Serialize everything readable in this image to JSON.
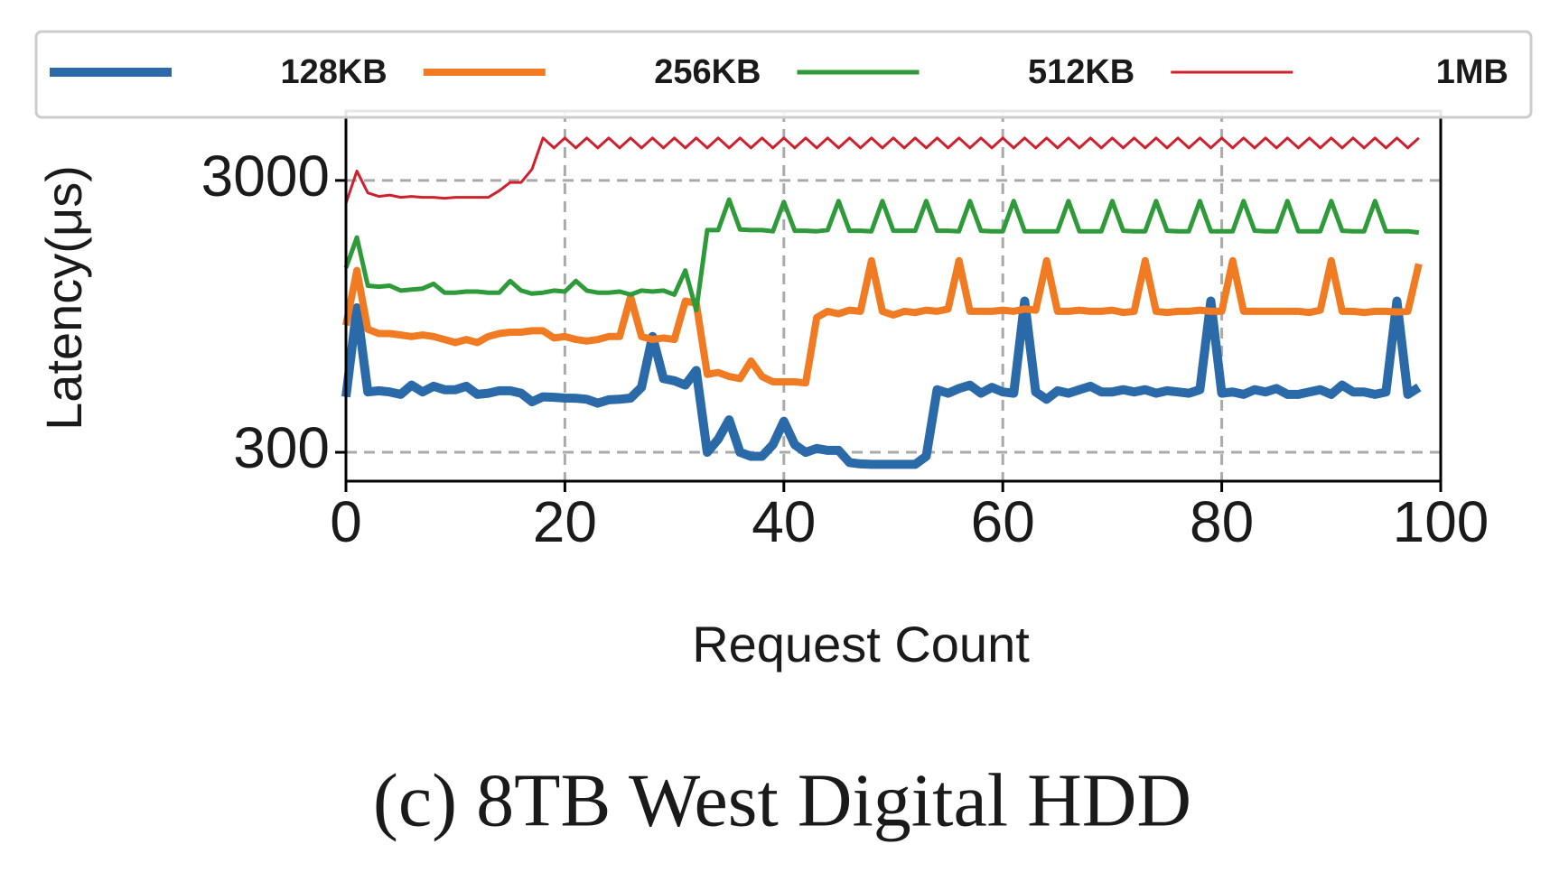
{
  "chart_data": {
    "type": "line",
    "xlabel": "Request Count",
    "ylabel": "Latency(μs)",
    "caption": "(c)  8TB West Digital HDD",
    "x": [
      0,
      1,
      2,
      3,
      4,
      5,
      6,
      7,
      8,
      9,
      10,
      11,
      12,
      13,
      14,
      15,
      16,
      17,
      18,
      19,
      20,
      21,
      22,
      23,
      24,
      25,
      26,
      27,
      28,
      29,
      30,
      31,
      32,
      33,
      34,
      35,
      36,
      37,
      38,
      39,
      40,
      41,
      42,
      43,
      44,
      45,
      46,
      47,
      48,
      49,
      50,
      51,
      52,
      53,
      54,
      55,
      56,
      57,
      58,
      59,
      60,
      61,
      62,
      63,
      64,
      65,
      66,
      67,
      68,
      69,
      70,
      71,
      72,
      73,
      74,
      75,
      76,
      77,
      78,
      79,
      80,
      81,
      82,
      83,
      84,
      85,
      86,
      87,
      88,
      89,
      90,
      91,
      92,
      93,
      94,
      95,
      96,
      97,
      98
    ],
    "series": [
      {
        "name": "128KB",
        "color": "#2b6aa8",
        "values": [
          480,
          1020,
          500,
          505,
          500,
          490,
          530,
          500,
          525,
          510,
          510,
          525,
          490,
          495,
          505,
          505,
          495,
          460,
          480,
          478,
          475,
          474,
          470,
          455,
          468,
          470,
          475,
          520,
          800,
          560,
          550,
          530,
          600,
          300,
          335,
          395,
          300,
          290,
          290,
          320,
          390,
          320,
          300,
          310,
          305,
          305,
          275,
          272,
          271,
          271,
          271,
          271,
          271,
          290,
          510,
          495,
          515,
          530,
          495,
          520,
          500,
          495,
          1080,
          500,
          470,
          505,
          495,
          510,
          525,
          500,
          500,
          510,
          500,
          510,
          495,
          505,
          500,
          495,
          510,
          1080,
          495,
          500,
          490,
          510,
          500,
          515,
          490,
          490,
          500,
          510,
          490,
          530,
          500,
          500,
          490,
          500,
          1080,
          490,
          520
        ]
      },
      {
        "name": "256KB",
        "color": "#f07b22",
        "values": [
          880,
          1400,
          850,
          820,
          820,
          810,
          800,
          810,
          800,
          780,
          760,
          780,
          760,
          800,
          820,
          830,
          830,
          840,
          840,
          790,
          800,
          780,
          770,
          780,
          800,
          800,
          1120,
          800,
          780,
          790,
          780,
          1080,
          1060,
          580,
          590,
          570,
          560,
          650,
          570,
          545,
          545,
          545,
          540,
          940,
          990,
          970,
          1000,
          990,
          1520,
          990,
          960,
          990,
          980,
          1000,
          990,
          1010,
          1520,
          990,
          990,
          990,
          1000,
          990,
          1010,
          1000,
          1520,
          990,
          990,
          1000,
          990,
          990,
          1000,
          980,
          990,
          1520,
          990,
          980,
          990,
          990,
          1000,
          990,
          990,
          1520,
          990,
          990,
          990,
          990,
          990,
          990,
          980,
          1000,
          1520,
          990,
          990,
          980,
          990,
          990,
          985,
          990,
          1480
        ]
      },
      {
        "name": "512KB",
        "color": "#2e9a3a",
        "values": [
          1430,
          1850,
          1230,
          1220,
          1230,
          1180,
          1190,
          1200,
          1250,
          1160,
          1160,
          1170,
          1170,
          1160,
          1160,
          1280,
          1180,
          1150,
          1160,
          1180,
          1170,
          1280,
          1180,
          1160,
          1160,
          1170,
          1140,
          1180,
          1170,
          1180,
          1140,
          1400,
          1000,
          1970,
          1970,
          2550,
          1980,
          1970,
          1970,
          1950,
          2500,
          1960,
          1960,
          1950,
          1970,
          2520,
          1960,
          1960,
          1950,
          2520,
          1960,
          1960,
          1960,
          2520,
          1960,
          1960,
          1950,
          2520,
          1960,
          1950,
          1950,
          2520,
          1950,
          1950,
          1950,
          1950,
          2520,
          1950,
          1950,
          1950,
          2520,
          1960,
          1950,
          1950,
          2520,
          1960,
          1950,
          1950,
          2520,
          1950,
          1950,
          1950,
          2520,
          1960,
          1950,
          1950,
          2520,
          1950,
          1950,
          1950,
          2520,
          1960,
          1950,
          1950,
          2520,
          1950,
          1950,
          1950,
          1930
        ]
      },
      {
        "name": "1MB",
        "color": "#d0202e",
        "values": [
          2470,
          3250,
          2700,
          2620,
          2650,
          2600,
          2620,
          2600,
          2600,
          2580,
          2600,
          2600,
          2600,
          2600,
          2750,
          2950,
          2950,
          3300,
          4300,
          3950,
          4300,
          3950,
          4300,
          3950,
          4300,
          3950,
          4300,
          3950,
          4300,
          3950,
          4300,
          3950,
          4300,
          3950,
          4300,
          3950,
          4300,
          3950,
          4300,
          3950,
          4300,
          3950,
          4300,
          3950,
          4300,
          3950,
          4300,
          3950,
          4300,
          3950,
          4300,
          3950,
          4300,
          3950,
          4300,
          3950,
          4300,
          3950,
          4300,
          3950,
          4300,
          3950,
          4300,
          3950,
          4300,
          3950,
          4300,
          3950,
          4300,
          3950,
          4300,
          3950,
          4300,
          3950,
          4300,
          3950,
          4300,
          3950,
          4300,
          3950,
          4300,
          3950,
          4300,
          3950,
          4300,
          3950,
          4300,
          3950,
          4300,
          3950,
          4300,
          3950,
          4300,
          3950,
          4300,
          3950,
          4300,
          3950,
          4300
        ]
      }
    ],
    "xlim": [
      0,
      100
    ],
    "xticks": [
      0,
      20,
      40,
      60,
      80,
      100
    ],
    "ylim": [
      235,
      5400
    ],
    "yticks": [
      300,
      3000
    ],
    "ylog": true,
    "grid": true
  }
}
